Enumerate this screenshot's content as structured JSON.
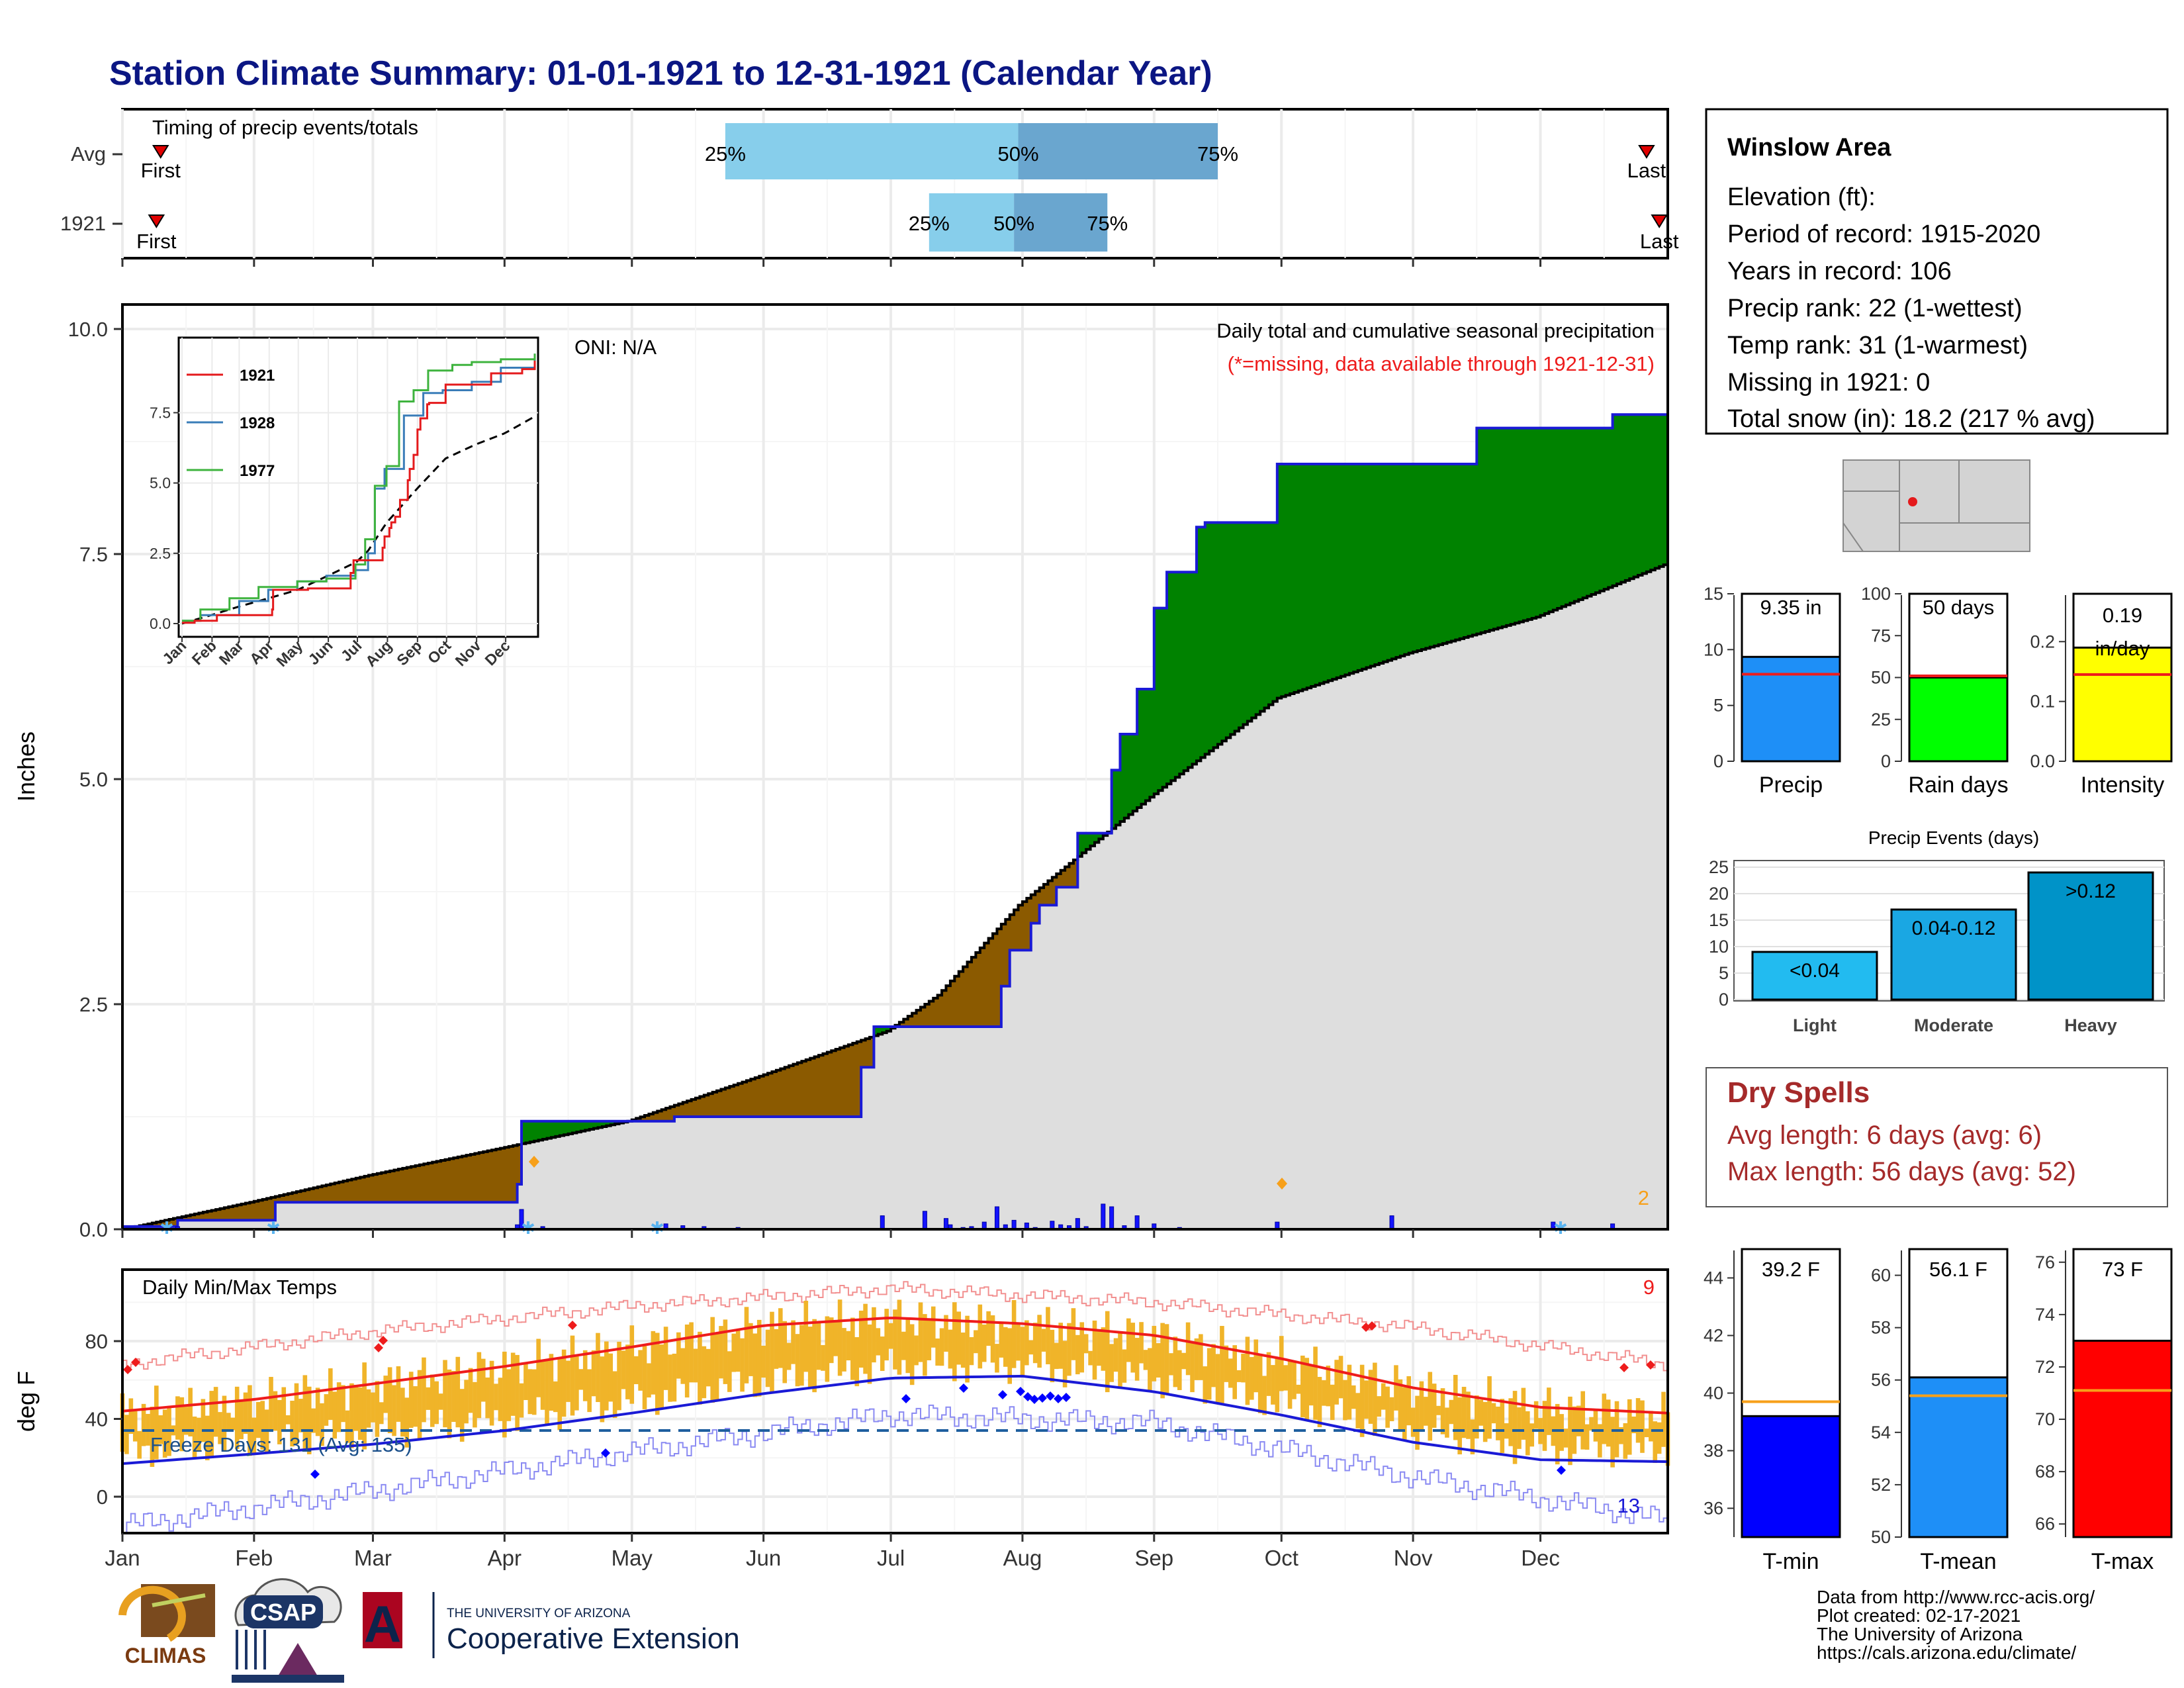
{
  "title": "Station Climate Summary: 01-01-1921 to 12-31-1921 (Calendar Year)",
  "colors": {
    "title": "#0b1683",
    "cum_2021_line": "#1a1ad6",
    "wet_fill": "#008200",
    "dry_fill": "#8b5a00",
    "avg_fill": "#dedede",
    "tmax_line": "#ee1c1c",
    "tmin_line": "#1a1ad6",
    "temp_bars": "#f0b429",
    "light": "#22bbf0",
    "moderate": "#1aa7e3",
    "heavy": "#0093c8",
    "dry_spell_text": "#a52a2a"
  },
  "timing": {
    "title": "Timing of precip events/totals",
    "rows": [
      {
        "label": "Avg",
        "first": "First",
        "last": "Last",
        "p25": "25%",
        "p50": "50%",
        "p75": "75%",
        "first_day": 10,
        "last_day": 360,
        "p25_day": 143,
        "p50_day": 212,
        "p75_day": 259
      },
      {
        "label": "1921",
        "first": "First",
        "last": "Last",
        "p25": "25%",
        "p50": "50%",
        "p75": "75%",
        "first_day": 9,
        "last_day": 363,
        "p25_day": 191,
        "p50_day": 211,
        "p75_day": 233
      }
    ]
  },
  "months": [
    "Jan",
    "Feb",
    "Mar",
    "Apr",
    "May",
    "Jun",
    "Jul",
    "Aug",
    "Sep",
    "Oct",
    "Nov",
    "Dec"
  ],
  "precip_panel": {
    "ylabel": "Inches",
    "oni": "ONI: N/A",
    "subtitle": "Daily total and cumulative seasonal precipitation",
    "missing_note": "(*=missing, data available through 1921-12-31)",
    "missing_count": "2",
    "yticks": [
      "0.0",
      "2.5",
      "5.0",
      "7.5",
      "10.0"
    ]
  },
  "inset": {
    "legend": [
      "1921",
      "1928",
      "1977"
    ],
    "yticks": [
      "0.0",
      "2.5",
      "5.0",
      "7.5"
    ],
    "months": [
      "Jan",
      "Feb",
      "Mar",
      "Apr",
      "May",
      "Jun",
      "Jul",
      "Aug",
      "Sep",
      "Oct",
      "Nov",
      "Dec"
    ]
  },
  "temp_panel": {
    "title": "Daily Min/Max Temps",
    "ylabel": "deg F",
    "freeze": "Freeze Days: 131 (Avg: 135)",
    "record_high_count": "9",
    "record_low_count": "13",
    "yticks": [
      "0",
      "40",
      "80"
    ]
  },
  "info": {
    "station": "Winslow Area",
    "lines": [
      "Elevation (ft):",
      "Period of record: 1915-2020",
      "Years in record: 106",
      "Precip rank: 22 (1-wettest)",
      "Temp rank: 31 (1-warmest)",
      "Missing in 1921: 0",
      "Total snow (in): 18.2 (217 % avg)"
    ]
  },
  "mini_bars": [
    {
      "label": "Precip",
      "value_text": "9.35 in",
      "yticks": [
        "0",
        "5",
        "10",
        "15"
      ],
      "color": "#1e8ff7"
    },
    {
      "label": "Rain days",
      "value_text": "50 days",
      "yticks": [
        "0",
        "25",
        "50",
        "75",
        "100"
      ],
      "color": "#00ff00"
    },
    {
      "label": "Intensity",
      "value_text": "0.19 in/day",
      "yticks": [
        "0.0",
        "0.1",
        "0.2"
      ],
      "color": "#ffff00"
    }
  ],
  "events": {
    "title": "Precip Events (days)",
    "yticks": [
      "0",
      "5",
      "10",
      "15",
      "20",
      "25"
    ],
    "bars": [
      {
        "cat": "Light",
        "label": "<0.04",
        "color": "#22bbf0"
      },
      {
        "cat": "Moderate",
        "label": "0.04-0.12",
        "color": "#1aa7e3"
      },
      {
        "cat": "Heavy",
        "label": ">0.12",
        "color": "#0093c8"
      }
    ]
  },
  "dry_spells": {
    "title": "Dry Spells",
    "avg": "Avg length: 6 days (avg: 6)",
    "max": "Max length: 56 days (avg: 52)"
  },
  "temp_bars": [
    {
      "label": "T-min",
      "value_text": "39.2 F",
      "yticks": [
        "36",
        "38",
        "40",
        "42",
        "44"
      ],
      "color": "#0000ff"
    },
    {
      "label": "T-mean",
      "value_text": "56.1 F",
      "yticks": [
        "50",
        "52",
        "54",
        "56",
        "58",
        "60"
      ],
      "color": "#1e8ff7"
    },
    {
      "label": "T-max",
      "value_text": "73 F",
      "yticks": [
        "66",
        "68",
        "70",
        "72",
        "74",
        "76"
      ],
      "color": "#ff0000"
    }
  ],
  "footer": {
    "lines": [
      "Data from http://www.rcc-acis.org/",
      "Plot created: 02-17-2021",
      "The University of Arizona",
      "https://cals.arizona.edu/climate/"
    ],
    "logos": [
      "CLIMAS",
      "CSAP",
      "THE UNIVERSITY OF ARIZONA",
      "Cooperative Extension",
      "A"
    ]
  },
  "chart_data": [
    {
      "type": "area",
      "title": "Daily total and cumulative seasonal precipitation",
      "ylabel": "Inches",
      "ylim": [
        0,
        10
      ],
      "x_unit": "day of year",
      "series": [
        {
          "name": "1921",
          "x": [
            1,
            14,
            37,
            93,
            94,
            95,
            131,
            175,
            178,
            208,
            210,
            215,
            217,
            221,
            226,
            234,
            236,
            240,
            244,
            247,
            254,
            256,
            267,
            273,
            300,
            320,
            345,
            352,
            365
          ],
          "values": [
            0.03,
            0.1,
            0.3,
            0.3,
            0.5,
            1.2,
            1.25,
            1.8,
            2.25,
            2.7,
            3.1,
            3.4,
            3.6,
            3.8,
            4.4,
            5.1,
            5.5,
            6.0,
            6.9,
            7.3,
            7.8,
            7.85,
            7.85,
            8.5,
            8.5,
            8.9,
            8.9,
            9.05,
            9.35
          ]
        },
        {
          "name": "Average",
          "x": [
            1,
            31,
            59,
            90,
            120,
            151,
            181,
            193,
            212,
            243,
            273,
            304,
            334,
            365
          ],
          "values": [
            0.0,
            0.3,
            0.6,
            0.9,
            1.2,
            1.7,
            2.2,
            2.6,
            3.6,
            4.8,
            5.9,
            6.4,
            6.8,
            7.4
          ]
        }
      ]
    },
    {
      "type": "bar",
      "title": "Daily precipitation (1921)",
      "x_unit": "day of year",
      "x": [
        14,
        37,
        94,
        95,
        100,
        129,
        133,
        138,
        146,
        180,
        190,
        195,
        196,
        199,
        201,
        204,
        207,
        209,
        211,
        214,
        216,
        220,
        222,
        224,
        226,
        228,
        232,
        234,
        237,
        240,
        244,
        250,
        273,
        300,
        338,
        352
      ],
      "values": [
        0.03,
        0.02,
        0.05,
        0.22,
        0.03,
        0.06,
        0.04,
        0.03,
        0.02,
        0.15,
        0.2,
        0.12,
        0.05,
        0.02,
        0.03,
        0.08,
        0.25,
        0.05,
        0.1,
        0.07,
        0.02,
        0.09,
        0.05,
        0.04,
        0.12,
        0.03,
        0.28,
        0.25,
        0.04,
        0.15,
        0.06,
        0.02,
        0.08,
        0.15,
        0.08,
        0.06
      ]
    },
    {
      "type": "line",
      "title": "Daily Min/Max Temps",
      "ylabel": "deg F",
      "ylim": [
        -20,
        105
      ],
      "x_unit": "day of year",
      "series": [
        {
          "name": "avg max",
          "x": [
            1,
            32,
            60,
            91,
            121,
            152,
            182,
            213,
            244,
            274,
            305,
            335,
            365
          ],
          "values": [
            44,
            50,
            58,
            67,
            77,
            88,
            92,
            89,
            83,
            71,
            56,
            46,
            43
          ]
        },
        {
          "name": "avg min",
          "x": [
            1,
            32,
            60,
            91,
            121,
            152,
            182,
            213,
            244,
            274,
            305,
            335,
            365
          ],
          "values": [
            17,
            22,
            27,
            34,
            43,
            53,
            61,
            62,
            54,
            42,
            28,
            19,
            18
          ]
        },
        {
          "name": "record max",
          "x": [
            1,
            60,
            121,
            182,
            244,
            305,
            365
          ],
          "values": [
            68,
            85,
            98,
            107,
            100,
            87,
            68
          ]
        },
        {
          "name": "record min",
          "x": [
            1,
            60,
            121,
            182,
            244,
            305,
            365
          ],
          "values": [
            -15,
            3,
            23,
            42,
            38,
            10,
            -12
          ]
        }
      ],
      "freeze_line": 32
    },
    {
      "type": "bar",
      "title": "Precip",
      "categories": [
        "Precip"
      ],
      "values": [
        9.35
      ],
      "ylim": [
        0,
        15
      ],
      "average": 7.8
    },
    {
      "type": "bar",
      "title": "Rain days",
      "categories": [
        "Rain days"
      ],
      "values": [
        50
      ],
      "ylim": [
        0,
        100
      ],
      "average": 51
    },
    {
      "type": "bar",
      "title": "Intensity",
      "categories": [
        "Intensity"
      ],
      "values": [
        0.19
      ],
      "ylim": [
        0,
        0.28
      ],
      "average": 0.145
    },
    {
      "type": "bar",
      "title": "Precip Events (days)",
      "categories": [
        "Light",
        "Moderate",
        "Heavy"
      ],
      "values": [
        9,
        17,
        24
      ],
      "ylim": [
        0,
        25
      ]
    },
    {
      "type": "bar",
      "title": "T-min",
      "categories": [
        "T-min"
      ],
      "values": [
        39.2
      ],
      "ylim": [
        35,
        45
      ],
      "average": 39.7
    },
    {
      "type": "bar",
      "title": "T-mean",
      "categories": [
        "T-mean"
      ],
      "values": [
        56.1
      ],
      "ylim": [
        50,
        61
      ],
      "average": 55.4
    },
    {
      "type": "bar",
      "title": "T-max",
      "categories": [
        "T-max"
      ],
      "values": [
        73
      ],
      "ylim": [
        65.5,
        76.5
      ],
      "average": 71.1
    }
  ]
}
